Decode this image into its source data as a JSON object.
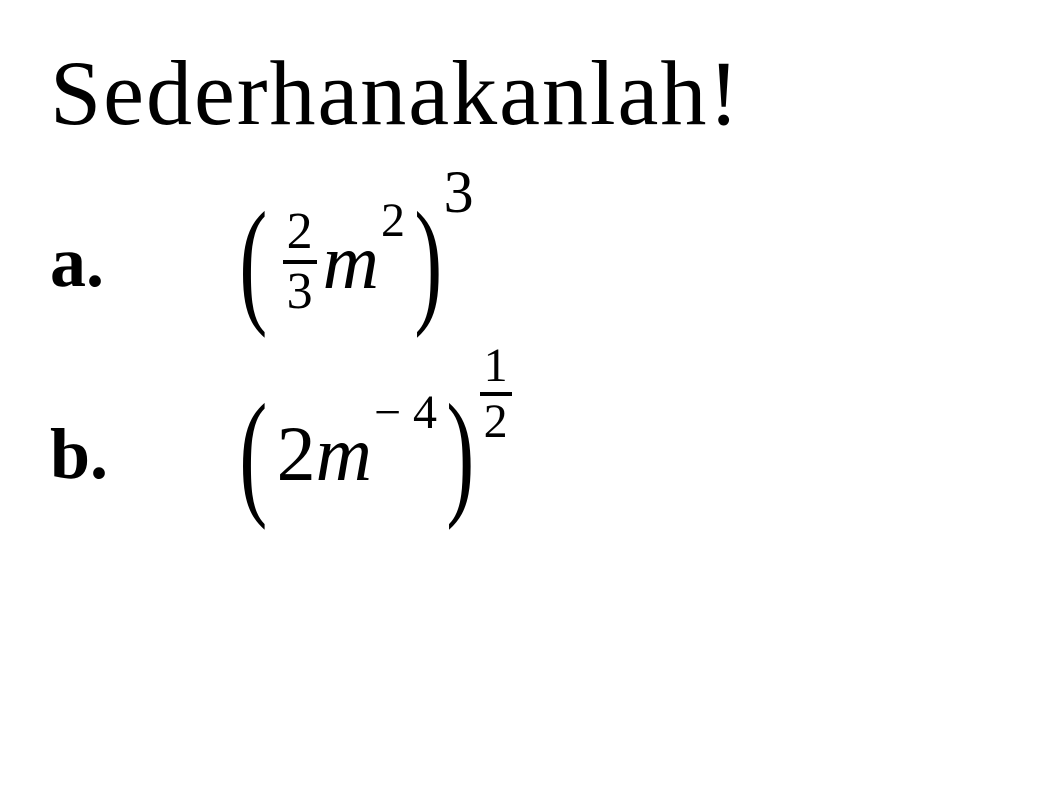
{
  "title": "Sederhanakanlah!",
  "problems": {
    "a": {
      "label": "a.",
      "frac_num": "2",
      "frac_den": "3",
      "variable": "m",
      "inner_exp": "2",
      "outer_exp": "3"
    },
    "b": {
      "label": "b.",
      "coef": "2",
      "variable": "m",
      "inner_exp": "− 4",
      "outer_exp_num": "1",
      "outer_exp_den": "2"
    }
  },
  "colors": {
    "text": "#000000",
    "background": "#ffffff"
  },
  "typography": {
    "title_fontsize": 92,
    "label_fontsize": 72,
    "expr_fontsize": 78,
    "font_family": "Georgia, Times New Roman, serif"
  }
}
